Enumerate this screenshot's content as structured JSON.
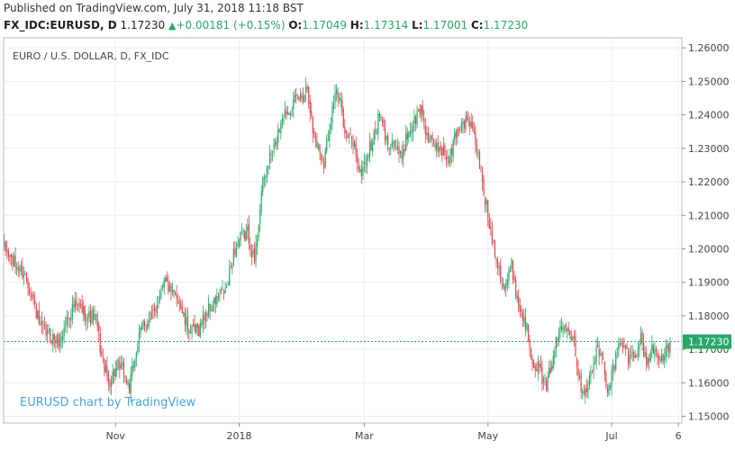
{
  "header": {
    "published": "Published on TradingView.com, July 31, 2018 11:18 BST",
    "symbol": "FX_IDC:EURUSD, D",
    "last": "1.17230",
    "change_arrow": "▲",
    "change": "+0.00181 (+0.15%)",
    "o_label": "O:",
    "o_value": "1.17049",
    "h_label": "H:",
    "h_value": "1.17314",
    "l_label": "L:",
    "l_value": "1.17001",
    "c_label": "C:",
    "c_value": "1.17230"
  },
  "colors": {
    "up": "#26a869",
    "down": "#e0474c",
    "last_price": "#26a869",
    "grid": "#eeeeee",
    "axis": "#888888",
    "watermark": "#4aa3e6"
  },
  "chart_data": {
    "type": "candlestick",
    "title": "EURO / U.S. DOLLAR, D, FX_IDC",
    "watermark": "EURUSD chart by TradingView",
    "ylim": [
      1.148,
      1.263
    ],
    "y_ticks": [
      "1.15000",
      "1.16000",
      "1.17000",
      "1.18000",
      "1.19000",
      "1.20000",
      "1.21000",
      "1.22000",
      "1.23000",
      "1.24000",
      "1.25000",
      "1.26000"
    ],
    "x_ticks": [
      {
        "label": "Nov",
        "bar": 80
      },
      {
        "label": "2018",
        "bar": 169
      },
      {
        "label": "Mar",
        "bar": 259
      },
      {
        "label": "May",
        "bar": 348
      },
      {
        "label": "Jul",
        "bar": 437
      },
      {
        "label": "6",
        "bar": 485
      }
    ],
    "last_price": 1.1723,
    "last_price_label": "1.17230",
    "bar_count": 480,
    "anchors": [
      [
        0,
        1.2
      ],
      [
        8,
        1.195
      ],
      [
        14,
        1.193
      ],
      [
        20,
        1.186
      ],
      [
        26,
        1.176
      ],
      [
        33,
        1.174
      ],
      [
        40,
        1.172
      ],
      [
        45,
        1.179
      ],
      [
        50,
        1.183
      ],
      [
        55,
        1.182
      ],
      [
        60,
        1.18
      ],
      [
        66,
        1.179
      ],
      [
        70,
        1.168
      ],
      [
        75,
        1.16
      ],
      [
        80,
        1.164
      ],
      [
        85,
        1.164
      ],
      [
        90,
        1.158
      ],
      [
        95,
        1.17
      ],
      [
        100,
        1.178
      ],
      [
        105,
        1.178
      ],
      [
        110,
        1.184
      ],
      [
        115,
        1.192
      ],
      [
        120,
        1.186
      ],
      [
        125,
        1.186
      ],
      [
        130,
        1.178
      ],
      [
        135,
        1.175
      ],
      [
        140,
        1.176
      ],
      [
        145,
        1.181
      ],
      [
        150,
        1.183
      ],
      [
        155,
        1.186
      ],
      [
        160,
        1.188
      ],
      [
        165,
        1.199
      ],
      [
        170,
        1.203
      ],
      [
        175,
        1.205
      ],
      [
        180,
        1.196
      ],
      [
        185,
        1.217
      ],
      [
        190,
        1.226
      ],
      [
        195,
        1.231
      ],
      [
        200,
        1.24
      ],
      [
        205,
        1.242
      ],
      [
        210,
        1.244
      ],
      [
        215,
        1.246
      ],
      [
        218,
        1.249
      ],
      [
        222,
        1.235
      ],
      [
        226,
        1.23
      ],
      [
        230,
        1.226
      ],
      [
        234,
        1.237
      ],
      [
        238,
        1.247
      ],
      [
        242,
        1.243
      ],
      [
        246,
        1.234
      ],
      [
        252,
        1.231
      ],
      [
        256,
        1.222
      ],
      [
        262,
        1.229
      ],
      [
        266,
        1.233
      ],
      [
        270,
        1.24
      ],
      [
        275,
        1.232
      ],
      [
        280,
        1.232
      ],
      [
        285,
        1.227
      ],
      [
        290,
        1.234
      ],
      [
        295,
        1.238
      ],
      [
        300,
        1.242
      ],
      [
        305,
        1.232
      ],
      [
        310,
        1.231
      ],
      [
        315,
        1.23
      ],
      [
        320,
        1.226
      ],
      [
        325,
        1.235
      ],
      [
        330,
        1.238
      ],
      [
        335,
        1.238
      ],
      [
        340,
        1.23
      ],
      [
        345,
        1.217
      ],
      [
        350,
        1.205
      ],
      [
        355,
        1.196
      ],
      [
        360,
        1.188
      ],
      [
        365,
        1.195
      ],
      [
        370,
        1.183
      ],
      [
        375,
        1.178
      ],
      [
        380,
        1.167
      ],
      [
        385,
        1.164
      ],
      [
        390,
        1.158
      ],
      [
        395,
        1.169
      ],
      [
        400,
        1.176
      ],
      [
        405,
        1.178
      ],
      [
        410,
        1.173
      ],
      [
        414,
        1.16
      ],
      [
        418,
        1.158
      ],
      [
        422,
        1.162
      ],
      [
        426,
        1.169
      ],
      [
        430,
        1.168
      ],
      [
        434,
        1.158
      ],
      [
        438,
        1.164
      ],
      [
        442,
        1.171
      ],
      [
        446,
        1.171
      ],
      [
        450,
        1.167
      ],
      [
        454,
        1.169
      ],
      [
        458,
        1.173
      ],
      [
        462,
        1.166
      ],
      [
        466,
        1.17
      ],
      [
        470,
        1.169
      ],
      [
        474,
        1.167
      ],
      [
        478,
        1.1705
      ],
      [
        479,
        1.1723
      ]
    ]
  }
}
